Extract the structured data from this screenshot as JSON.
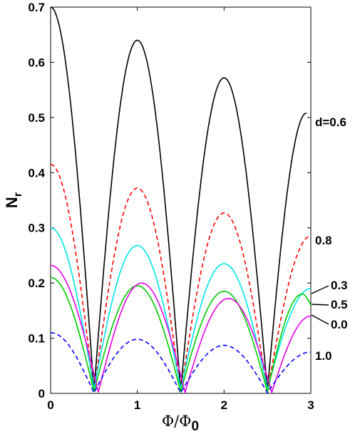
{
  "chart_data": {
    "type": "line",
    "xlabel": {
      "main": "Φ/Φ",
      "sub": "0"
    },
    "ylabel": {
      "main": "N",
      "sub": "r"
    },
    "xlim": [
      0,
      3
    ],
    "ylim": [
      0,
      0.7
    ],
    "x_ticks": [
      "0",
      "1",
      "2",
      "3"
    ],
    "y_ticks": [
      "0",
      "0.1",
      "0.2",
      "0.3",
      "0.4",
      "0.5",
      "0.6",
      "0.7"
    ],
    "series": [
      {
        "name": "d=0.6",
        "color": "#000000",
        "dash": "solid",
        "x": [
          0,
          0.5,
          1,
          1.5,
          2,
          2.5,
          2.95
        ],
        "y": [
          0.7,
          0.005,
          0.64,
          0.005,
          0.572,
          0.005,
          0.508
        ]
      },
      {
        "name": "0.8",
        "color": "#ff0000",
        "dash": "dashed",
        "x": [
          0,
          0.5,
          1,
          1.5,
          2,
          2.5,
          3
        ],
        "y": [
          0.415,
          0.002,
          0.372,
          0.002,
          0.327,
          0.002,
          0.285
        ]
      },
      {
        "name": "0.3",
        "color": "#00e5e5",
        "dash": "solid",
        "x": [
          0,
          0.5,
          1,
          1.5,
          2,
          2.5,
          3
        ],
        "y": [
          0.3,
          0.008,
          0.268,
          0.008,
          0.235,
          0.008,
          0.19
        ]
      },
      {
        "name": "0.5",
        "color": "#00cc00",
        "dash": "solid",
        "x": [
          0,
          0.5,
          1,
          1.5,
          2,
          2.5,
          2.9,
          3
        ],
        "y": [
          0.21,
          0.003,
          0.195,
          0.003,
          0.185,
          0.003,
          0.18,
          0.16
        ]
      },
      {
        "name": "0.0",
        "color": "#e600e6",
        "dash": "solid",
        "x": [
          0,
          0.55,
          1.05,
          1.55,
          2.05,
          2.55,
          3
        ],
        "y": [
          0.232,
          0.002,
          0.2,
          0.002,
          0.172,
          0.002,
          0.14
        ]
      },
      {
        "name": "1.0",
        "color": "#0000ff",
        "dash": "dashed",
        "x": [
          0,
          0.5,
          1,
          1.5,
          2,
          2.5,
          3
        ],
        "y": [
          0.11,
          0.001,
          0.098,
          0.001,
          0.087,
          0.001,
          0.075
        ]
      }
    ],
    "curve_labels": [
      "d=0.6",
      "0.8",
      "0.3",
      "0.5",
      "0.0",
      "1.0"
    ]
  }
}
